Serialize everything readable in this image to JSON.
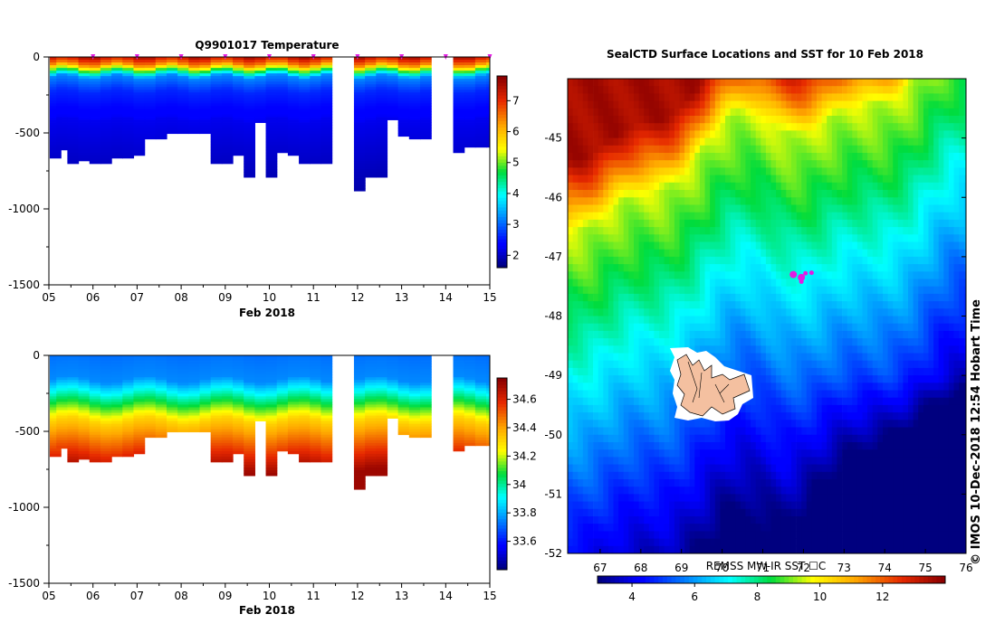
{
  "colors": {
    "background": "#ffffff",
    "axis": "#000000",
    "marker": "#e21ce2",
    "island": "#f4c0a0",
    "cold": "#00007f",
    "warm": "#a50000"
  },
  "chart_data": [
    {
      "type": "heatmap",
      "title": "Q9901017  Temperature",
      "xlabel": "Feb 2018",
      "ylabel": "",
      "x_ticks": [
        "05",
        "06",
        "07",
        "08",
        "09",
        "10",
        "11",
        "12",
        "13",
        "14",
        "15"
      ],
      "xlim": [
        5,
        15
      ],
      "y_ticks": [
        "0",
        "-500",
        "-1000",
        "-1500"
      ],
      "ylim": [
        -1500,
        0
      ],
      "colorbar_ticks": [
        "2",
        "3",
        "4",
        "5",
        "6",
        "7"
      ],
      "colorbar_range": [
        1.6,
        7.8
      ],
      "profiles": [
        {
          "day": 5.05,
          "max_depth": 650
        },
        {
          "day": 5.3,
          "max_depth": 600
        },
        {
          "day": 5.55,
          "max_depth": 700
        },
        {
          "day": 5.8,
          "max_depth": 670
        },
        {
          "day": 6.05,
          "max_depth": 700
        },
        {
          "day": 6.3,
          "max_depth": 700
        },
        {
          "day": 6.55,
          "max_depth": 650
        },
        {
          "day": 6.8,
          "max_depth": 650
        },
        {
          "day": 7.05,
          "max_depth": 640
        },
        {
          "day": 7.3,
          "max_depth": 540
        },
        {
          "day": 7.55,
          "max_depth": 540
        },
        {
          "day": 7.8,
          "max_depth": 500
        },
        {
          "day": 8.05,
          "max_depth": 500
        },
        {
          "day": 8.3,
          "max_depth": 500
        },
        {
          "day": 8.55,
          "max_depth": 500
        },
        {
          "day": 8.8,
          "max_depth": 700
        },
        {
          "day": 9.05,
          "max_depth": 700
        },
        {
          "day": 9.3,
          "max_depth": 640
        },
        {
          "day": 9.55,
          "max_depth": 780
        },
        {
          "day": 9.8,
          "max_depth": 420
        },
        {
          "day": 10.05,
          "max_depth": 780
        },
        {
          "day": 10.3,
          "max_depth": 620
        },
        {
          "day": 10.55,
          "max_depth": 640
        },
        {
          "day": 10.8,
          "max_depth": 700
        },
        {
          "day": 11.05,
          "max_depth": 700
        },
        {
          "day": 11.3,
          "max_depth": 700
        },
        {
          "day": 11.55,
          "max_depth": 0
        },
        {
          "day": 11.8,
          "max_depth": 0
        },
        {
          "day": 12.05,
          "max_depth": 880
        },
        {
          "day": 12.3,
          "max_depth": 780
        },
        {
          "day": 12.55,
          "max_depth": 780
        },
        {
          "day": 12.8,
          "max_depth": 400
        },
        {
          "day": 13.05,
          "max_depth": 520
        },
        {
          "day": 13.3,
          "max_depth": 540
        },
        {
          "day": 13.55,
          "max_depth": 540
        },
        {
          "day": 13.8,
          "max_depth": 0
        },
        {
          "day": 14.05,
          "max_depth": 0
        },
        {
          "day": 14.3,
          "max_depth": 620
        },
        {
          "day": 14.55,
          "max_depth": 580
        },
        {
          "day": 14.8,
          "max_depth": 580
        },
        {
          "day": 15.05,
          "max_depth": 580
        }
      ],
      "surface_markers": [
        6.0,
        7.0,
        8.0,
        9.0,
        10.0,
        11.0,
        12.0,
        13.0,
        14.0,
        15.0
      ]
    },
    {
      "type": "heatmap",
      "title": "",
      "xlabel": "Feb 2018",
      "ylabel": "",
      "x_ticks": [
        "05",
        "06",
        "07",
        "08",
        "09",
        "10",
        "11",
        "12",
        "13",
        "14",
        "15"
      ],
      "xlim": [
        5,
        15
      ],
      "y_ticks": [
        "0",
        "-500",
        "-1000",
        "-1500"
      ],
      "ylim": [
        -1500,
        0
      ],
      "colorbar_ticks": [
        "33.6",
        "33.8",
        "34",
        "34.2",
        "34.4",
        "34.6"
      ],
      "colorbar_range": [
        33.4,
        34.75
      ],
      "note": "Salinity section, same profiles as temperature section"
    },
    {
      "type": "heatmap",
      "title": "SealCTD Surface Locations and SST for 10 Feb 2018",
      "xlabel": "",
      "ylabel": "",
      "x_ticks": [
        "67",
        "68",
        "69",
        "70",
        "71",
        "72",
        "73",
        "74",
        "75",
        "76"
      ],
      "xlim": [
        66.2,
        76.0
      ],
      "y_ticks": [
        "-45",
        "-46",
        "-47",
        "-48",
        "-49",
        "-50",
        "-51",
        "-52"
      ],
      "ylim": [
        -52.0,
        -44.0
      ],
      "colorbar_label": "REMSS MW-IR SST ☐C",
      "colorbar_ticks": [
        "4",
        "6",
        "8",
        "10",
        "12"
      ],
      "colorbar_range": [
        2.9,
        14.0
      ],
      "locations": [
        {
          "lon": 71.95,
          "lat": -47.35
        },
        {
          "lon": 71.75,
          "lat": -47.3
        },
        {
          "lon": 72.05,
          "lat": -47.28
        },
        {
          "lon": 71.95,
          "lat": -47.42
        },
        {
          "lon": 72.2,
          "lat": -47.27
        }
      ],
      "side_text": "©  IMOS 10-Dec-2018 12:54 Hobart Time"
    }
  ]
}
